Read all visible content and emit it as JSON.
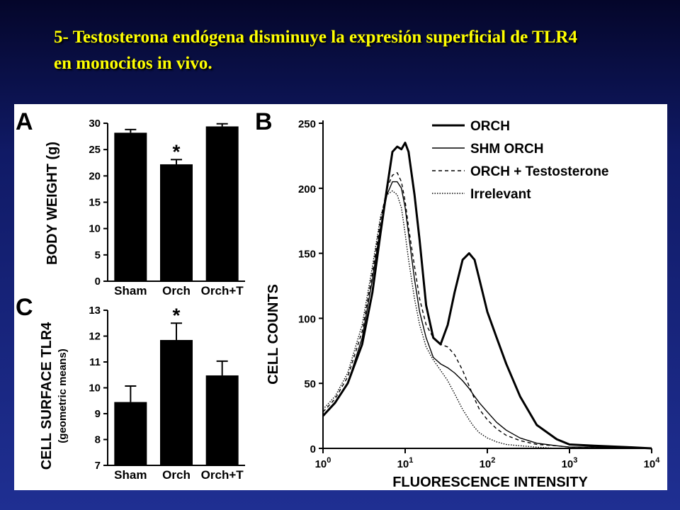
{
  "slide": {
    "title_line1": "5- Testosterona endógena disminuye la expresión superficial de TLR4",
    "title_line2": "en monocitos  in vivo."
  },
  "colors": {
    "title": "#ffff00",
    "background": "#1f2f92",
    "ink": "#000000"
  },
  "chart_data": [
    {
      "panel_label": "A",
      "type": "bar",
      "ylabel": "BODY WEIGHT (g)",
      "categories": [
        "Sham",
        "Orch",
        "Orch+T"
      ],
      "values": [
        28.2,
        22.2,
        29.4
      ],
      "errors": [
        0.6,
        0.9,
        0.5
      ],
      "significance": [
        "",
        "*",
        ""
      ],
      "ylim": [
        0,
        30
      ],
      "yticks": [
        0,
        5,
        10,
        15,
        20,
        25,
        30
      ]
    },
    {
      "panel_label": "C",
      "type": "bar",
      "ylabel": "CELL SURFACE TLR4",
      "ylabel_sub": "(geometric means)",
      "categories": [
        "Sham",
        "Orch",
        "Orch+T"
      ],
      "values": [
        9.45,
        11.85,
        10.48
      ],
      "errors": [
        0.62,
        0.65,
        0.55
      ],
      "significance": [
        "",
        "*",
        ""
      ],
      "ylim": [
        7,
        13
      ],
      "yticks": [
        7,
        8,
        9,
        10,
        11,
        12,
        13
      ]
    },
    {
      "panel_label": "B",
      "type": "line",
      "xlabel": "FLUORESCENCE INTENSITY",
      "ylabel": "CELL COUNTS",
      "x_scale": "log",
      "xlim": [
        1,
        10000
      ],
      "xticks": [
        1,
        10,
        100,
        1000,
        10000
      ],
      "ylim": [
        0,
        250
      ],
      "yticks": [
        0,
        50,
        100,
        150,
        200,
        250
      ],
      "legend_position": "top-right",
      "series": [
        {
          "name": "ORCH",
          "style": "thick",
          "x": [
            1,
            1.4,
            2,
            3,
            4,
            5,
            6,
            7,
            8,
            9,
            10,
            11,
            13,
            15,
            18,
            22,
            27,
            33,
            40,
            50,
            60,
            70,
            80,
            100,
            130,
            170,
            250,
            400,
            700,
            1000,
            2000,
            5000,
            10000
          ],
          "y": [
            25,
            35,
            50,
            80,
            120,
            165,
            200,
            228,
            232,
            230,
            235,
            228,
            195,
            160,
            110,
            85,
            80,
            95,
            120,
            145,
            150,
            145,
            130,
            105,
            85,
            65,
            40,
            18,
            7,
            3,
            2,
            1,
            0
          ]
        },
        {
          "name": "SHM ORCH",
          "style": "thin",
          "x": [
            1,
            1.4,
            2,
            3,
            4,
            5,
            6,
            7,
            8,
            9,
            10,
            11,
            13,
            15,
            18,
            22,
            27,
            33,
            40,
            50,
            60,
            70,
            80,
            100,
            130,
            170,
            250,
            400,
            700,
            1000,
            2000,
            5000,
            10000
          ],
          "y": [
            25,
            35,
            50,
            85,
            130,
            170,
            195,
            205,
            205,
            200,
            185,
            165,
            130,
            105,
            85,
            70,
            65,
            62,
            58,
            52,
            46,
            40,
            35,
            28,
            20,
            14,
            8,
            4,
            2,
            1,
            1,
            0,
            0
          ]
        },
        {
          "name": "ORCH + Testosterone",
          "style": "dashed",
          "x": [
            1,
            1.4,
            2,
            3,
            4,
            5,
            6,
            7,
            8,
            9,
            10,
            11,
            13,
            15,
            18,
            22,
            27,
            33,
            40,
            50,
            60,
            70,
            80,
            100,
            130,
            170,
            250,
            400,
            700,
            1000,
            2000,
            5000,
            10000
          ],
          "y": [
            28,
            38,
            55,
            90,
            135,
            175,
            200,
            210,
            212,
            205,
            190,
            170,
            140,
            115,
            95,
            85,
            80,
            78,
            72,
            60,
            48,
            38,
            30,
            22,
            15,
            10,
            6,
            3,
            2,
            1,
            1,
            0,
            0
          ]
        },
        {
          "name": "Irrelevant",
          "style": "dotted",
          "x": [
            1,
            1.4,
            2,
            3,
            4,
            5,
            6,
            7,
            8,
            9,
            10,
            11,
            13,
            15,
            18,
            22,
            27,
            33,
            40,
            50,
            60,
            70,
            80,
            100,
            130,
            170,
            250,
            400,
            700,
            1000,
            2000,
            5000,
            10000
          ],
          "y": [
            30,
            40,
            58,
            95,
            140,
            178,
            195,
            198,
            195,
            185,
            165,
            145,
            115,
            95,
            78,
            68,
            60,
            52,
            42,
            30,
            22,
            16,
            12,
            8,
            5,
            3,
            2,
            1,
            0,
            0,
            0,
            0,
            0
          ]
        }
      ]
    }
  ]
}
